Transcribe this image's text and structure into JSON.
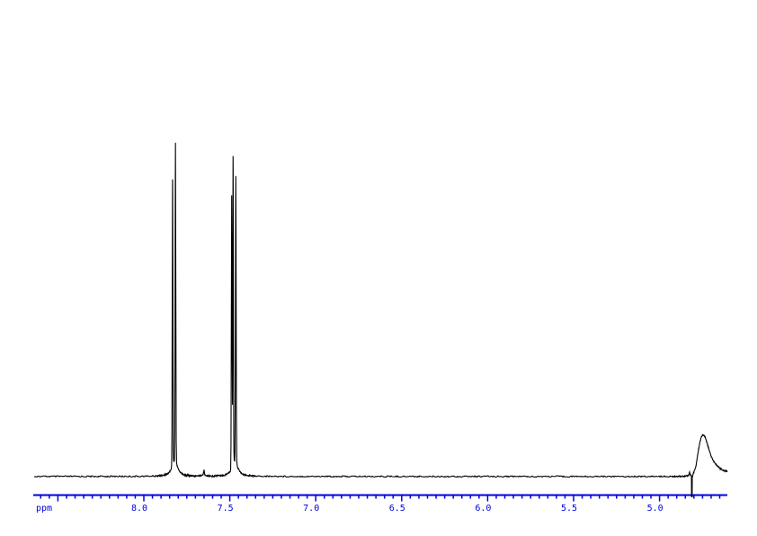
{
  "figure": {
    "background_color": "#ffffff",
    "trace_color": "#000000",
    "axis_color": "#0000dd"
  },
  "chart_data": {
    "type": "line",
    "description": "1H NMR spectrum trace (intensity vs chemical shift)",
    "title": "",
    "xlabel": "ppm",
    "ylabel": "",
    "x_unit_label": "ppm",
    "x_range_ppm": [
      8.65,
      4.6
    ],
    "x_direction": "decreasing left to right",
    "x_tick_label_values": [
      8.0,
      7.5,
      7.0,
      6.5,
      6.0,
      5.5,
      5.0
    ],
    "x_tick_labels": [
      "8.0",
      "7.5",
      "7.0",
      "6.5",
      "6.0",
      "5.5",
      "5.0"
    ],
    "x_major_tick_step_ppm": 0.5,
    "x_major_ticks_ppm": [
      8.5,
      8.0,
      7.5,
      7.0,
      6.5,
      6.0,
      5.5,
      5.0
    ],
    "x_minor_tick_step_ppm": 0.05,
    "grid": "off",
    "legend": "none",
    "baseline_rel_intensity": 0.0,
    "noise_rel_amplitude": 0.003,
    "peaks": [
      {
        "name": "aromatic-doublet-A",
        "type": "doublet",
        "center_ppm": 7.82,
        "lines": [
          {
            "ppm": 7.833,
            "rel_height": 0.898
          },
          {
            "ppm": 7.816,
            "rel_height": 1.0
          }
        ]
      },
      {
        "name": "minor-impurity-singlet",
        "type": "singlet",
        "center_ppm": 7.65,
        "lines": [
          {
            "ppm": 7.65,
            "rel_height": 0.013
          }
        ]
      },
      {
        "name": "aromatic-doublet-B",
        "type": "doublet",
        "center_ppm": 7.47,
        "lines": [
          {
            "ppm": 7.489,
            "rel_height": 0.858
          },
          {
            "ppm": 7.481,
            "rel_height": 0.969
          },
          {
            "ppm": 7.465,
            "rel_height": 0.898
          }
        ]
      },
      {
        "name": "pre-spike-blip",
        "type": "singlet",
        "center_ppm": 4.825,
        "lines": [
          {
            "ppm": 4.825,
            "rel_height": 0.008
          }
        ]
      },
      {
        "name": "dispersion-spike",
        "type": "negative-spike",
        "center_ppm": 4.812,
        "rel_height": -0.064
      },
      {
        "name": "water-HDO-broad-peak",
        "type": "broad",
        "apex_ppm": 4.75,
        "apex_rel_height": 0.132,
        "profile_ppm": [
          4.807,
          4.789,
          4.778,
          4.768,
          4.757,
          4.747,
          4.736,
          4.726,
          4.715,
          4.7,
          4.684,
          4.668,
          4.653,
          4.637,
          4.621,
          4.605
        ],
        "profile_rel": [
          0.004,
          0.03,
          0.069,
          0.1,
          0.123,
          0.132,
          0.126,
          0.109,
          0.089,
          0.064,
          0.047,
          0.035,
          0.027,
          0.021,
          0.018,
          0.016
        ]
      }
    ]
  }
}
